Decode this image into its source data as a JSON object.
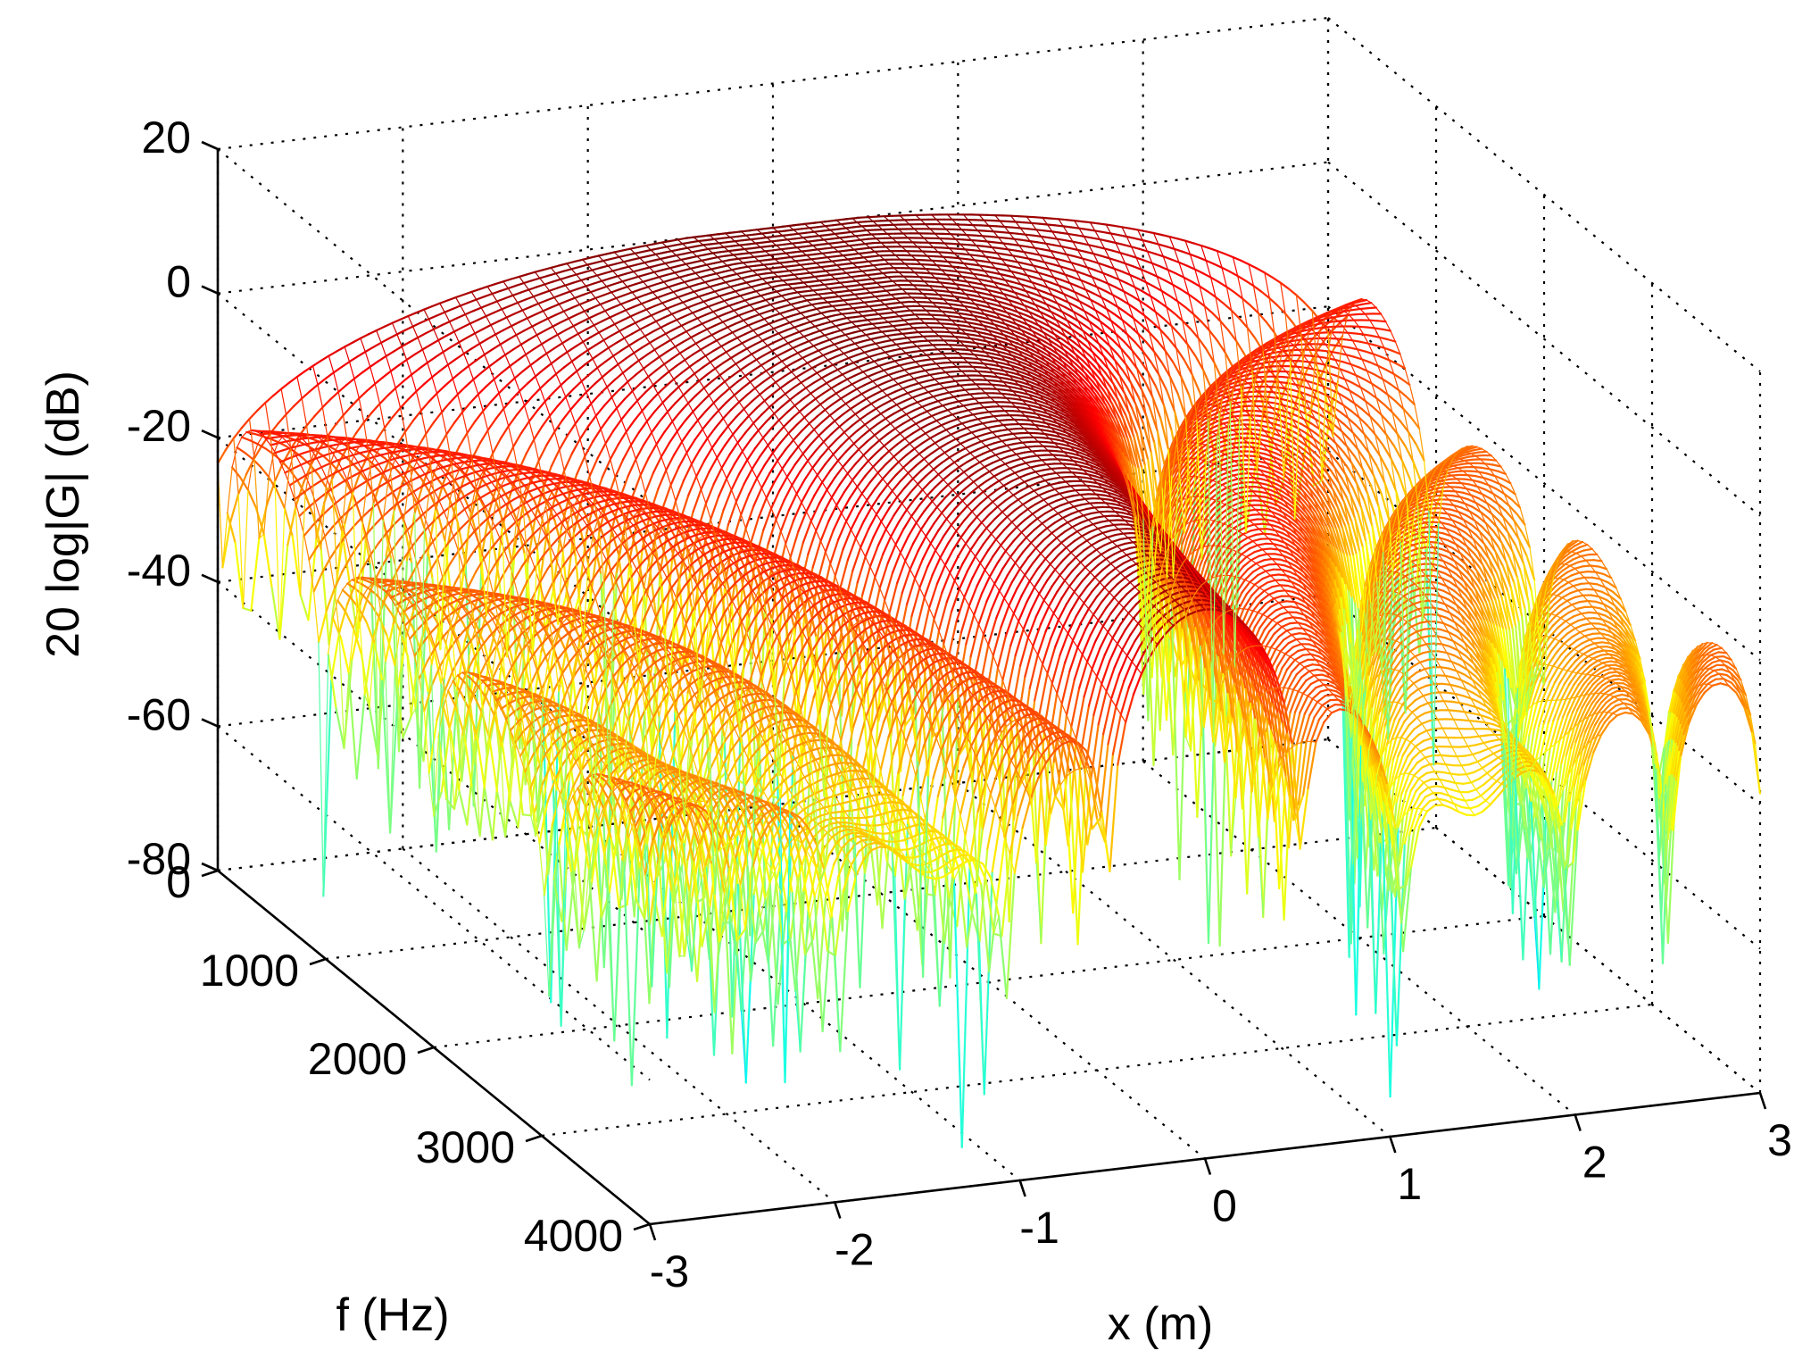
{
  "chart_data": {
    "type": "surface",
    "title": "",
    "xlabel": "x (m)",
    "ylabel": "f (Hz)",
    "zlabel": "20 log|G| (dB)",
    "x_ticks": [
      "-3",
      "-2",
      "-1",
      "0",
      "1",
      "2",
      "3"
    ],
    "y_ticks": [
      "0",
      "1000",
      "2000",
      "3000",
      "4000"
    ],
    "z_ticks": [
      "20",
      "0",
      "-20",
      "-40",
      "-60",
      "-80"
    ],
    "xlim": [
      -3,
      3
    ],
    "ylim": [
      0,
      4000
    ],
    "zlim": [
      -80,
      20
    ],
    "grid": true,
    "colormap": "jet",
    "surface_description": {
      "peak": {
        "x": 0,
        "f": 0,
        "value_db": 0
      },
      "main_lobe_edge_db": -30,
      "sidelobe_level_db": [
        -40,
        -30
      ],
      "null_depth_db": -80
    },
    "colors": {
      "high": "#7f0000",
      "mid_high": "#ff3000",
      "mid": "#ffff00",
      "low": "#00ffff",
      "lowest": "#0000ff"
    }
  }
}
